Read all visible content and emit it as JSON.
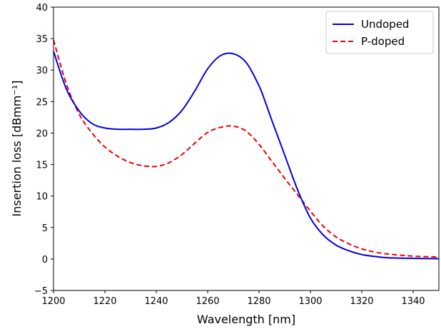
{
  "chart_data": {
    "type": "line",
    "title": "",
    "xlabel": "Wavelength [nm]",
    "ylabel": "Insertion loss [dBmm⁻¹]",
    "xlim": [
      1200,
      1350
    ],
    "ylim": [
      -5,
      40
    ],
    "xticks": [
      1200,
      1220,
      1240,
      1260,
      1280,
      1300,
      1320,
      1340
    ],
    "yticks": [
      -5,
      0,
      5,
      10,
      15,
      20,
      25,
      30,
      35,
      40
    ],
    "xtick_labels": [
      "1200",
      "1220",
      "1240",
      "1260",
      "1280",
      "1300",
      "1320",
      "1340"
    ],
    "ytick_labels": [
      "−5",
      "0",
      "5",
      "10",
      "15",
      "20",
      "25",
      "30",
      "35",
      "40"
    ],
    "grid": false,
    "legend": "top-right",
    "series": [
      {
        "name": "Undoped",
        "color": "#0000dd",
        "style": "solid",
        "x": [
          1200,
          1205,
          1210,
          1215,
          1220,
          1225,
          1230,
          1235,
          1240,
          1245,
          1250,
          1255,
          1260,
          1265,
          1270,
          1275,
          1280,
          1283,
          1285,
          1290,
          1295,
          1300,
          1305,
          1310,
          1315,
          1320,
          1325,
          1330,
          1340,
          1350
        ],
        "y": [
          33.0,
          27.0,
          23.5,
          21.5,
          20.8,
          20.6,
          20.6,
          20.6,
          20.8,
          21.7,
          23.6,
          26.7,
          30.2,
          32.3,
          32.6,
          31.2,
          27.5,
          24.3,
          22.0,
          16.5,
          11.0,
          6.5,
          3.8,
          2.2,
          1.3,
          0.7,
          0.4,
          0.2,
          0.1,
          0.05
        ]
      },
      {
        "name": "P-doped",
        "color": "#ee0000",
        "style": "dashed",
        "x": [
          1200,
          1205,
          1210,
          1215,
          1220,
          1225,
          1230,
          1235,
          1240,
          1245,
          1250,
          1255,
          1260,
          1265,
          1270,
          1275,
          1280,
          1285,
          1290,
          1295,
          1300,
          1305,
          1310,
          1315,
          1320,
          1325,
          1330,
          1340,
          1350
        ],
        "y": [
          34.8,
          27.8,
          23.0,
          20.0,
          17.8,
          16.3,
          15.3,
          14.8,
          14.7,
          15.3,
          16.6,
          18.4,
          20.1,
          20.9,
          21.1,
          20.3,
          18.2,
          15.5,
          12.8,
          10.2,
          7.6,
          5.2,
          3.5,
          2.4,
          1.6,
          1.1,
          0.8,
          0.45,
          0.3
        ]
      }
    ]
  }
}
